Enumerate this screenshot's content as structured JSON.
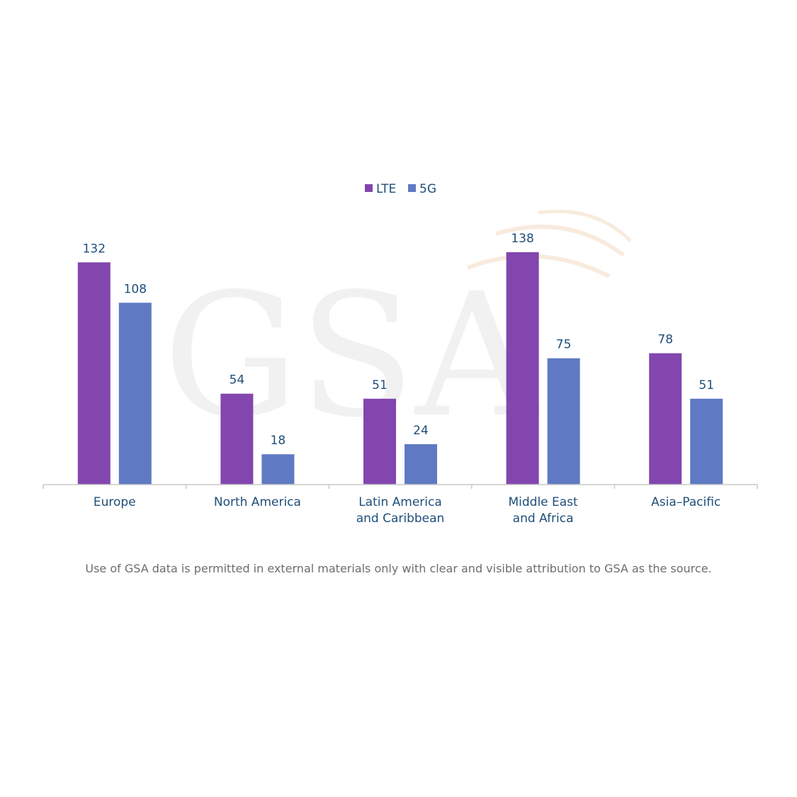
{
  "watermark": {
    "text": "GSA"
  },
  "chart_data": {
    "type": "bar",
    "title": "",
    "xlabel": "",
    "ylabel": "",
    "ylim": [
      0,
      138
    ],
    "grid": false,
    "legend_position": "top-center",
    "categories": [
      [
        "Europe"
      ],
      [
        "North America"
      ],
      [
        "Latin America",
        "and Caribbean"
      ],
      [
        "Middle East",
        "and Africa"
      ],
      [
        "Asia–Pacific"
      ]
    ],
    "series": [
      {
        "name": "LTE",
        "color": "#8246ae",
        "values": [
          132,
          54,
          51,
          138,
          78
        ]
      },
      {
        "name": "5G",
        "color": "#5f7ac3",
        "values": [
          108,
          18,
          24,
          75,
          51
        ]
      }
    ]
  },
  "footnote": "Use of GSA data is permitted in external materials only with clear and visible attribution to GSA as the source."
}
